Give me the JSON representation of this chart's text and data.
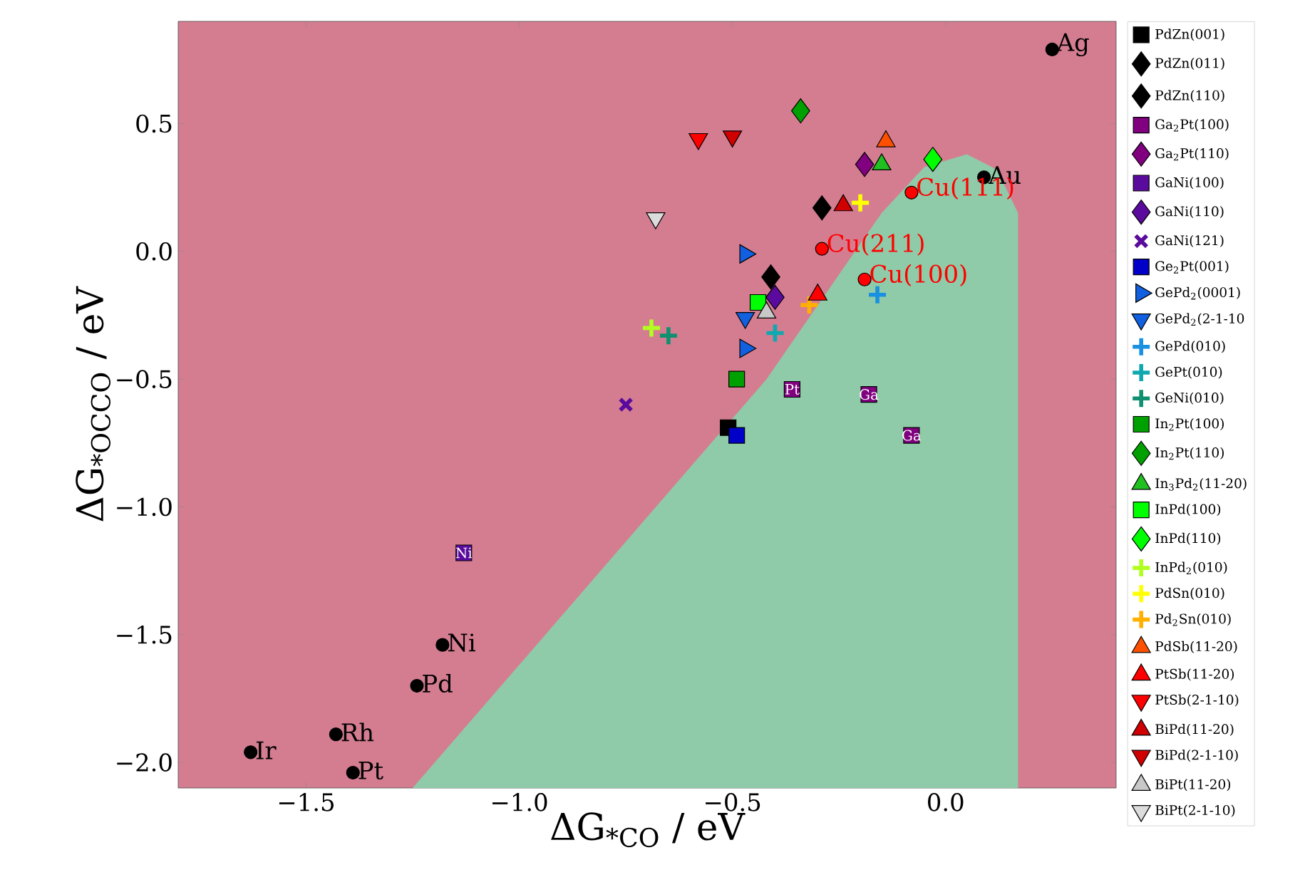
{
  "chart_data": {
    "type": "scatter",
    "xlabel": "ΔG$_{*CO}$ / eV",
    "ylabel": "ΔG$_{*OCCO}$ / eV",
    "xlim": [
      -1.8,
      0.4
    ],
    "ylim": [
      -2.1,
      0.9
    ],
    "xticks": [
      {
        "value": -1.5,
        "label": "−1.5"
      },
      {
        "value": -1.0,
        "label": "−1.0"
      },
      {
        "value": -0.5,
        "label": "−0.5"
      },
      {
        "value": 0.0,
        "label": "0.0"
      }
    ],
    "yticks": [
      {
        "value": 0.5,
        "label": "0.5"
      },
      {
        "value": 0.0,
        "label": "0.0"
      },
      {
        "value": -0.5,
        "label": "−0.5"
      },
      {
        "value": -1.0,
        "label": "−1.0"
      },
      {
        "value": -1.5,
        "label": "−1.5"
      },
      {
        "value": -2.0,
        "label": "−2.0"
      }
    ],
    "legend": "right",
    "series": [
      {
        "type": "area",
        "color": "#8fcba8",
        "x": [
          -1.25,
          -0.42,
          -0.15,
          -0.05,
          0.05,
          0.12,
          0.17,
          0.17
        ],
        "values": [
          -2.1,
          -0.5,
          0.15,
          0.33,
          0.38,
          0.32,
          0.15,
          -2.1
        ]
      },
      {
        "type": "scatter",
        "color": "#000000",
        "marker": "circle",
        "x": [
          0.25,
          0.09,
          -1.18,
          -1.24,
          -1.43,
          -1.63,
          -1.39
        ],
        "values": [
          0.79,
          0.29,
          -1.54,
          -1.7,
          -1.89,
          -1.96,
          -2.04
        ],
        "value_labels": [
          "Ag",
          "Au",
          "Ni",
          "Pd",
          "Rh",
          "Ir",
          "Pt"
        ]
      },
      {
        "type": "scatter",
        "color": "#ff0000",
        "marker": "circle",
        "x": [
          -0.08,
          -0.29,
          -0.19
        ],
        "values": [
          0.23,
          0.01,
          -0.11
        ],
        "value_labels": [
          "Cu(111)",
          "Cu(211)",
          "Cu(100)"
        ]
      },
      {
        "name": "PdZn(001)",
        "color": "#000000",
        "marker": "square",
        "x": [
          -0.51
        ],
        "values": [
          -0.69
        ]
      },
      {
        "name": "PdZn(011)",
        "color": "#000000",
        "marker": "diamond",
        "x": [
          -0.29
        ],
        "values": [
          0.17
        ]
      },
      {
        "name": "PdZn(110)",
        "color": "#000000",
        "marker": "diamond",
        "x": [
          -0.41
        ],
        "values": [
          -0.1
        ]
      },
      {
        "name": "Ga$_{2}$Pt(100)",
        "color": "#800080",
        "marker": "square",
        "x": [
          -0.36,
          -0.18,
          -0.08
        ],
        "values": [
          -0.54,
          -0.56,
          -0.72
        ],
        "value_labels": [
          "Pt",
          "Ga",
          "Ga"
        ]
      },
      {
        "name": "Ga$_{2}$Pt(110)",
        "color": "#800080",
        "marker": "diamond",
        "x": [
          -0.19
        ],
        "values": [
          0.34
        ]
      },
      {
        "name": "GaNi(100)",
        "color": "#5a0a9c",
        "marker": "square",
        "x": [
          -1.13
        ],
        "values": [
          -1.18
        ],
        "value_labels": [
          "Ni"
        ]
      },
      {
        "name": "GaNi(110)",
        "color": "#5a0a9c",
        "marker": "diamond",
        "x": [
          -0.4
        ],
        "values": [
          -0.18
        ]
      },
      {
        "name": "GaNi(121)",
        "color": "#5a0a9c",
        "marker": "x",
        "x": [
          -0.75
        ],
        "values": [
          -0.6
        ]
      },
      {
        "name": "Ge$_{2}$Pt(001)",
        "color": "#0000c8",
        "marker": "square",
        "x": [
          -0.49
        ],
        "values": [
          -0.72
        ]
      },
      {
        "name": "GePd$_{2}$(0001)",
        "color": "#1060e0",
        "marker": "triangle-right",
        "x": [
          -0.47,
          -0.47
        ],
        "values": [
          -0.01,
          -0.38
        ]
      },
      {
        "name": "GePd$_{2}$(2-1-10",
        "color": "#1060e0",
        "marker": "triangle-down",
        "x": [
          -0.47
        ],
        "values": [
          -0.26
        ]
      },
      {
        "name": "GePd(010)",
        "color": "#1a90e0",
        "marker": "cross",
        "x": [
          -0.16
        ],
        "values": [
          -0.17
        ]
      },
      {
        "name": "GePt(010)",
        "color": "#10a8b0",
        "marker": "cross",
        "x": [
          -0.4
        ],
        "values": [
          -0.32
        ]
      },
      {
        "name": "GeNi(010)",
        "color": "#109070",
        "marker": "cross",
        "x": [
          -0.65
        ],
        "values": [
          -0.33
        ]
      },
      {
        "name": "In$_{2}$Pt(100)",
        "color": "#00a000",
        "marker": "square",
        "x": [
          -0.49
        ],
        "values": [
          -0.5
        ]
      },
      {
        "name": "In$_{2}$Pt(110)",
        "color": "#00a000",
        "marker": "diamond",
        "x": [
          -0.34
        ],
        "values": [
          0.55
        ]
      },
      {
        "name": "In$_{3}$Pd$_{2}$(11-20)",
        "color": "#20c020",
        "marker": "triangle",
        "x": [
          -0.15
        ],
        "values": [
          0.34
        ]
      },
      {
        "name": "InPd(100)",
        "color": "#00ff00",
        "marker": "square",
        "x": [
          -0.44
        ],
        "values": [
          -0.2
        ]
      },
      {
        "name": "InPd(110)",
        "color": "#00ff00",
        "marker": "diamond",
        "x": [
          -0.03
        ],
        "values": [
          0.36
        ]
      },
      {
        "name": "InPd$_{2}$(010)",
        "color": "#b0ff20",
        "marker": "cross",
        "x": [
          -0.69
        ],
        "values": [
          -0.3
        ]
      },
      {
        "name": "PdSn(010)",
        "color": "#ffff00",
        "marker": "cross",
        "x": [
          -0.2
        ],
        "values": [
          0.19
        ]
      },
      {
        "name": "Pd$_{2}$Sn(010)",
        "color": "#ffb000",
        "marker": "cross",
        "x": [
          -0.32
        ],
        "values": [
          -0.21
        ]
      },
      {
        "name": "PdSb(11-20)",
        "color": "#ff5000",
        "marker": "triangle",
        "x": [
          -0.14
        ],
        "values": [
          0.43
        ]
      },
      {
        "name": "PtSb(11-20)",
        "color": "#ff0000",
        "marker": "triangle",
        "x": [
          -0.3
        ],
        "values": [
          -0.17
        ]
      },
      {
        "name": "PtSb(2-1-10)",
        "color": "#ff0000",
        "marker": "triangle-down",
        "x": [
          -0.58
        ],
        "values": [
          0.44
        ]
      },
      {
        "name": "BiPd(11-20)",
        "color": "#d00000",
        "marker": "triangle",
        "x": [
          -0.24
        ],
        "values": [
          0.18
        ]
      },
      {
        "name": "BiPd(2-1-10)",
        "color": "#d00000",
        "marker": "triangle-down",
        "x": [
          -0.5
        ],
        "values": [
          0.45
        ]
      },
      {
        "name": "BiPt(11-20)",
        "color": "#c8c8c8",
        "marker": "triangle",
        "x": [
          -0.42
        ],
        "values": [
          -0.24
        ]
      },
      {
        "name": "BiPt(2-1-10)",
        "color": "#dcdcdc",
        "marker": "triangle-down",
        "x": [
          -0.68
        ],
        "values": [
          0.13
        ]
      }
    ]
  }
}
